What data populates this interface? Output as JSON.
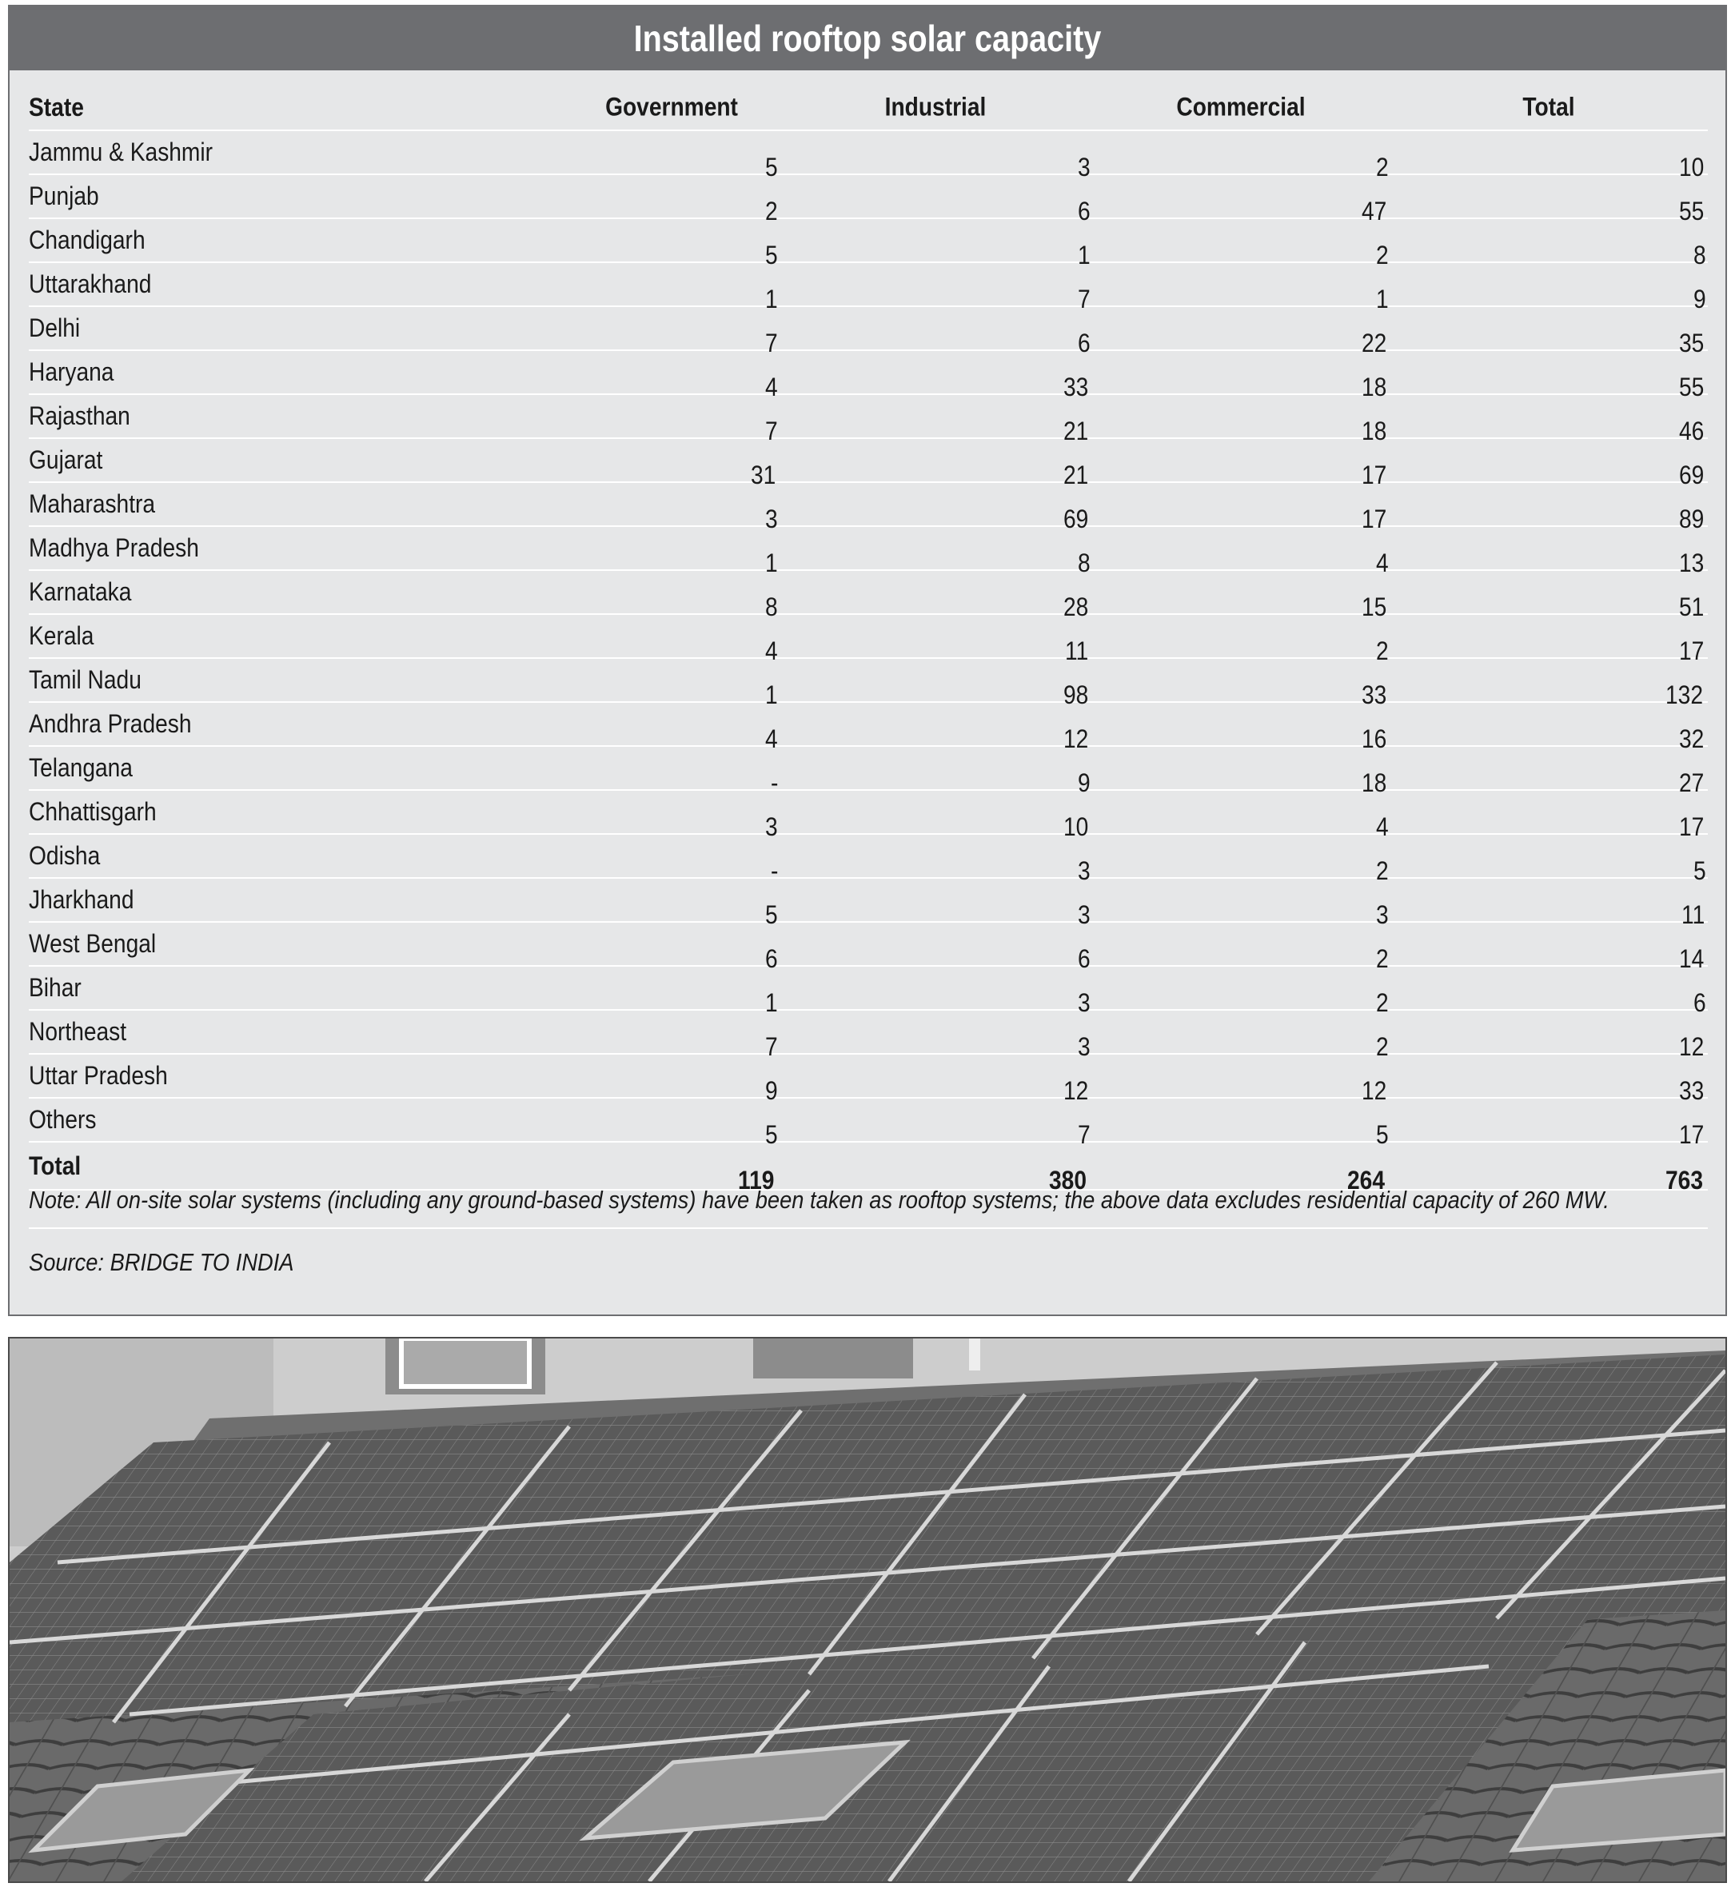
{
  "title": "Installed rooftop solar capacity",
  "columns": [
    "State",
    "Government",
    "Industrial",
    "Commercial",
    "Total"
  ],
  "rows": [
    [
      "Jammu & Kashmir",
      "5",
      "3",
      "2",
      "10"
    ],
    [
      "Punjab",
      "2",
      "6",
      "47",
      "55"
    ],
    [
      "Chandigarh",
      "5",
      "1",
      "2",
      "8"
    ],
    [
      "Uttarakhand",
      "1",
      "7",
      "1",
      "9"
    ],
    [
      "Delhi",
      "7",
      "6",
      "22",
      "35"
    ],
    [
      "Haryana",
      "4",
      "33",
      "18",
      "55"
    ],
    [
      "Rajasthan",
      "7",
      "21",
      "18",
      "46"
    ],
    [
      "Gujarat",
      "31",
      "21",
      "17",
      "69"
    ],
    [
      "Maharashtra",
      "3",
      "69",
      "17",
      "89"
    ],
    [
      "Madhya Pradesh",
      "1",
      "8",
      "4",
      "13"
    ],
    [
      "Karnataka",
      "8",
      "28",
      "15",
      "51"
    ],
    [
      "Kerala",
      "4",
      "11",
      "2",
      "17"
    ],
    [
      "Tamil Nadu",
      "1",
      "98",
      "33",
      "132"
    ],
    [
      "Andhra Pradesh",
      "4",
      "12",
      "16",
      "32"
    ],
    [
      "Telangana",
      "-",
      "9",
      "18",
      "27"
    ],
    [
      "Chhattisgarh",
      "3",
      "10",
      "4",
      "17"
    ],
    [
      "Odisha",
      "-",
      "3",
      "2",
      "5"
    ],
    [
      "Jharkhand",
      "5",
      "3",
      "3",
      "11"
    ],
    [
      "West Bengal",
      "6",
      "6",
      "2",
      "14"
    ],
    [
      "Bihar",
      "1",
      "3",
      "2",
      "6"
    ],
    [
      "Northeast",
      "7",
      "3",
      "2",
      "12"
    ],
    [
      "Uttar Pradesh",
      "9",
      "12",
      "12",
      "33"
    ],
    [
      "Others",
      "5",
      "7",
      "5",
      "17"
    ]
  ],
  "total_row": [
    "Total",
    "119",
    "380",
    "264",
    "763"
  ],
  "note": "Note: All on-site solar systems (including any ground-based systems) have been taken as rooftop systems; the above data excludes residential capacity of 260 MW.",
  "source": "Source: BRIDGE TO INDIA",
  "colors": {
    "title_bar": "#6d6e71",
    "table_bg": "#e6e7e8",
    "text": "#1a1a1a"
  }
}
